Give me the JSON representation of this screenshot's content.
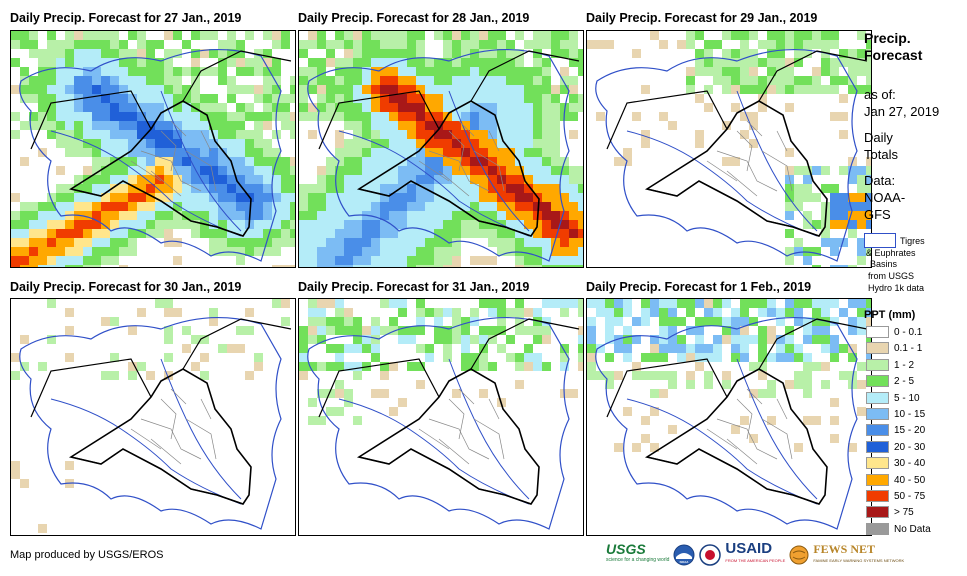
{
  "panels": [
    {
      "title": "Daily Precip. Forecast for 27 Jan., 2019"
    },
    {
      "title": "Daily Precip. Forecast for 28 Jan., 2019"
    },
    {
      "title": "Daily Precip. Forecast for 29 Jan., 2019"
    },
    {
      "title": "Daily Precip. Forecast for 30 Jan., 2019"
    },
    {
      "title": "Daily Precip. Forecast for 31 Jan., 2019"
    },
    {
      "title": "Daily Precip. Forecast for 1 Feb., 2019"
    }
  ],
  "sidebar": {
    "title_line1": "Precip.",
    "title_line2": "Forecast",
    "asof_label": "as of:",
    "asof_date": "Jan 27, 2019",
    "totals_line1": "Daily",
    "totals_line2": "Totals",
    "data_label": "Data:",
    "data_source1": "NOAA-",
    "data_source2": "GFS",
    "basin_line1": "Tigres",
    "basin_line2": "& Euphrates",
    "basin_line3": "Basins",
    "basin_line4": "from USGS",
    "basin_line5": "Hydro 1k data"
  },
  "legend": {
    "title": "PPT (mm)",
    "items": [
      {
        "label": "0 - 0.1",
        "color": "#ffffff"
      },
      {
        "label": "0.1 - 1",
        "color": "#e8d5b0"
      },
      {
        "label": "1 - 2",
        "color": "#b8f0a8"
      },
      {
        "label": "2 - 5",
        "color": "#72e05a"
      },
      {
        "label": "5 - 10",
        "color": "#b4ecf8"
      },
      {
        "label": "10 - 15",
        "color": "#7cbcf4"
      },
      {
        "label": "15 - 20",
        "color": "#4a8ee8"
      },
      {
        "label": "20 - 30",
        "color": "#2060d8"
      },
      {
        "label": "30 - 40",
        "color": "#ffe68c"
      },
      {
        "label": "40 - 50",
        "color": "#ffa800"
      },
      {
        "label": "50 - 75",
        "color": "#f03c00"
      },
      {
        "label": "> 75",
        "color": "#a81818"
      },
      {
        "label": "No Data",
        "color": "#9a9a9a"
      }
    ]
  },
  "footer": {
    "credit": "Map produced by USGS/EROS"
  },
  "logos": {
    "usgs": "USGS",
    "usgs_tag": "science for a changing world",
    "noaa": "NOAA",
    "usaid": "USAID",
    "usaid_tag": "FROM THE AMERICAN PEOPLE",
    "fews": "FEWS NET",
    "fews_tag": "FAMINE EARLY WARNING SYSTEMS NETWORK"
  },
  "colors": {
    "border": "#000000",
    "river_basin": "#3050c8",
    "admin": "#888888"
  }
}
